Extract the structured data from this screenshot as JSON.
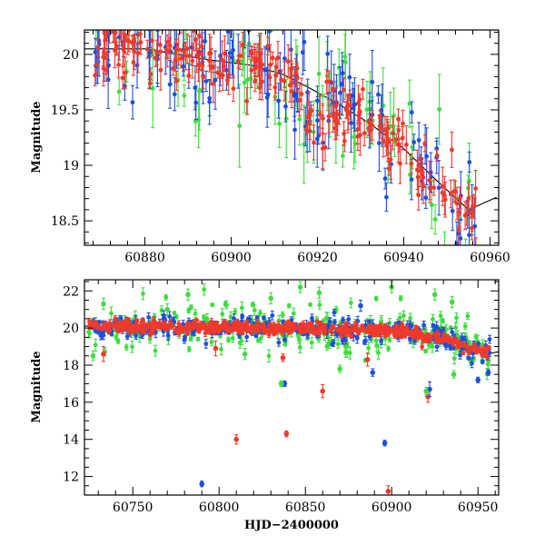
{
  "colors": {
    "blue": "#1f4fd8",
    "red": "#ee3a2c",
    "green": "#3fdc3f",
    "model": "#000000",
    "frame": "#000000"
  },
  "chart_data": [
    {
      "type": "scatter",
      "panel": "top",
      "title": "",
      "xlabel": "",
      "ylabel": "Magnitude",
      "xlim": [
        60866,
        60962
      ],
      "ylim": [
        20.22,
        18.28
      ],
      "y_inverted": true,
      "xticks": [
        60880,
        60900,
        60920,
        60940,
        60960
      ],
      "yticks": [
        18.5,
        19,
        19.5,
        20
      ],
      "ytick_labels": [
        "18.5",
        "19",
        "19.5",
        "20"
      ],
      "series": [
        {
          "name": "blue",
          "color_key": "blue"
        },
        {
          "name": "red",
          "color_key": "red"
        },
        {
          "name": "green",
          "color_key": "green"
        }
      ],
      "model_curve": {
        "x": [
          60880,
          60895,
          60905,
          60912,
          60918,
          60925,
          60932,
          60940,
          60948,
          60955,
          60962
        ],
        "y": [
          20.05,
          19.95,
          19.9,
          19.82,
          19.7,
          19.55,
          19.38,
          19.15,
          18.85,
          18.6,
          18.72
        ]
      }
    },
    {
      "type": "scatter",
      "panel": "bottom",
      "title": "",
      "xlabel": "HJD−2400000",
      "ylabel": "Magnitude",
      "xlim": [
        60722,
        60962
      ],
      "ylim": [
        22.6,
        11
      ],
      "y_inverted": true,
      "xticks": [
        60750,
        60800,
        60850,
        60900,
        60950
      ],
      "yticks": [
        12,
        14,
        16,
        18,
        20,
        22
      ],
      "ytick_labels": [
        "12",
        "14",
        "16",
        "18",
        "20",
        "22"
      ],
      "series": [
        {
          "name": "blue",
          "color_key": "blue"
        },
        {
          "name": "red",
          "color_key": "red"
        },
        {
          "name": "green",
          "color_key": "green"
        }
      ],
      "outliers": [
        {
          "series": "blue",
          "x": 60790,
          "y": 11.6,
          "err": 0.15
        },
        {
          "series": "red",
          "x": 60898,
          "y": 11.2,
          "err": 0.3
        },
        {
          "series": "red",
          "x": 60810,
          "y": 14.0,
          "err": 0.25
        },
        {
          "series": "red",
          "x": 60839,
          "y": 14.3,
          "err": 0.15
        },
        {
          "series": "blue",
          "x": 60896,
          "y": 13.8,
          "err": 0.15
        },
        {
          "series": "blue",
          "x": 60838,
          "y": 17.0,
          "err": 0.15
        },
        {
          "series": "red",
          "x": 60860,
          "y": 16.6,
          "err": 0.35
        },
        {
          "series": "red",
          "x": 60921,
          "y": 16.3,
          "err": 0.3
        },
        {
          "series": "blue",
          "x": 60922,
          "y": 16.7,
          "err": 0.4
        },
        {
          "series": "green",
          "x": 60836,
          "y": 17.0,
          "err": 0.15
        },
        {
          "series": "green",
          "x": 60920,
          "y": 16.6,
          "err": 0.2
        },
        {
          "series": "blue",
          "x": 60889,
          "y": 17.6,
          "err": 0.2
        },
        {
          "series": "green",
          "x": 60870,
          "y": 17.8,
          "err": 0.2
        },
        {
          "series": "red",
          "x": 60837,
          "y": 18.4,
          "err": 0.2
        },
        {
          "series": "green",
          "x": 60727,
          "y": 18.5,
          "err": 0.25
        },
        {
          "series": "red",
          "x": 60733,
          "y": 18.6,
          "err": 0.4
        },
        {
          "series": "red",
          "x": 60886,
          "y": 18.3,
          "err": 0.35
        },
        {
          "series": "blue",
          "x": 60950,
          "y": 17.2,
          "err": 0.15
        },
        {
          "series": "blue",
          "x": 60956,
          "y": 17.6,
          "err": 0.15
        },
        {
          "series": "green",
          "x": 60936,
          "y": 17.5,
          "err": 0.2
        },
        {
          "series": "red",
          "x": 60798,
          "y": 18.9,
          "err": 0.4
        },
        {
          "series": "green",
          "x": 60815,
          "y": 18.6,
          "err": 0.3
        },
        {
          "series": "green",
          "x": 60900,
          "y": 22.2,
          "err": 0.3
        },
        {
          "series": "green",
          "x": 60935,
          "y": 21.4,
          "err": 0.3
        },
        {
          "series": "green",
          "x": 60925,
          "y": 21.8,
          "err": 0.3
        },
        {
          "series": "green",
          "x": 60733,
          "y": 21.3,
          "err": 0.3
        },
        {
          "series": "green",
          "x": 60782,
          "y": 21.8,
          "err": 0.3
        },
        {
          "series": "green",
          "x": 60858,
          "y": 21.9,
          "err": 0.3
        },
        {
          "series": "green",
          "x": 60847,
          "y": 22.2,
          "err": 0.3
        },
        {
          "series": "blue",
          "x": 60882,
          "y": 21.2,
          "err": 0.3
        },
        {
          "series": "green",
          "x": 60830,
          "y": 21.6,
          "err": 0.3
        },
        {
          "series": "green",
          "x": 60770,
          "y": 21.0,
          "err": 0.3
        }
      ],
      "model_curve": {
        "x": [
          60722,
          60760,
          60800,
          60850,
          60880,
          60905,
          60920,
          60932,
          60940,
          60948,
          60955,
          60962
        ],
        "y": [
          20.1,
          20.1,
          20.05,
          19.98,
          19.92,
          19.85,
          19.7,
          19.4,
          19.15,
          18.85,
          18.6,
          18.72
        ]
      }
    }
  ]
}
